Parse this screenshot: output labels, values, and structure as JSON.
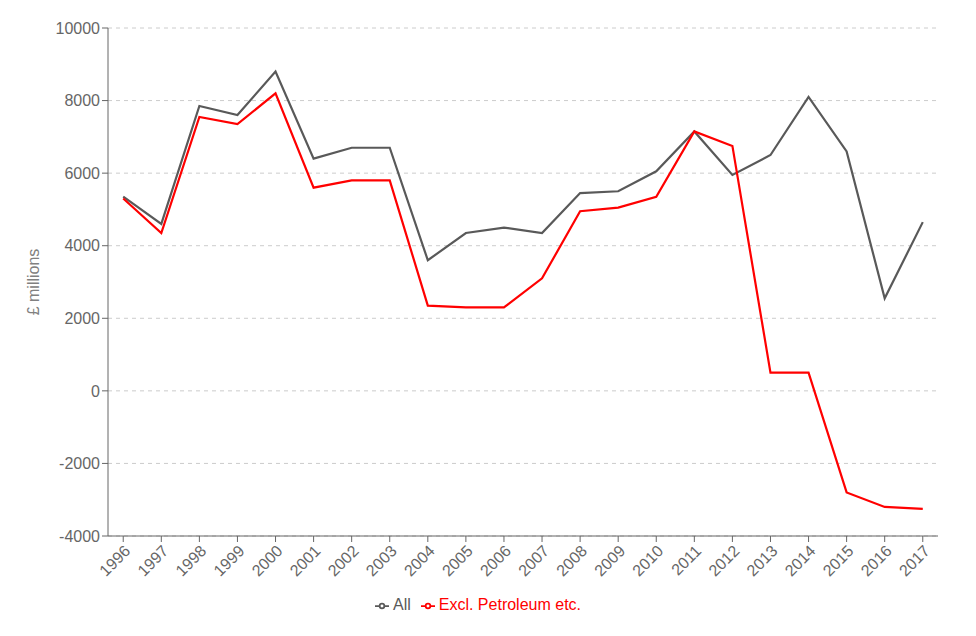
{
  "chart_data": {
    "type": "line",
    "ylabel": "£ millions",
    "x": [
      1996,
      1997,
      1998,
      1999,
      2000,
      2001,
      2002,
      2003,
      2004,
      2005,
      2006,
      2007,
      2008,
      2009,
      2010,
      2011,
      2012,
      2013,
      2014,
      2015,
      2016,
      2017
    ],
    "series": [
      {
        "name": "All",
        "color": "#595959",
        "values": [
          5350,
          4600,
          7850,
          7600,
          8800,
          6400,
          6700,
          6700,
          3600,
          4350,
          4500,
          4350,
          5450,
          5500,
          6050,
          7150,
          5950,
          6500,
          8100,
          6600,
          2550,
          4650
        ]
      },
      {
        "name": "Excl. Petroleum etc.",
        "color": "#FF0000",
        "values": [
          5300,
          4350,
          7550,
          7350,
          8200,
          5600,
          5800,
          5800,
          2350,
          2300,
          2300,
          3100,
          4950,
          5050,
          5350,
          7150,
          6750,
          500,
          500,
          -2800,
          -3200,
          -3250
        ]
      }
    ],
    "xlim": [
      1995.6,
      2017.4
    ],
    "xticks": [
      1996,
      1997,
      1998,
      1999,
      2000,
      2001,
      2002,
      2003,
      2004,
      2005,
      2006,
      2007,
      2008,
      2009,
      2010,
      2011,
      2012,
      2013,
      2014,
      2015,
      2016,
      2017
    ],
    "ylim": [
      -4000,
      10000
    ],
    "yticks": [
      -4000,
      -2000,
      0,
      2000,
      4000,
      6000,
      8000,
      10000
    ],
    "grid": "y",
    "legend": "bottom"
  }
}
